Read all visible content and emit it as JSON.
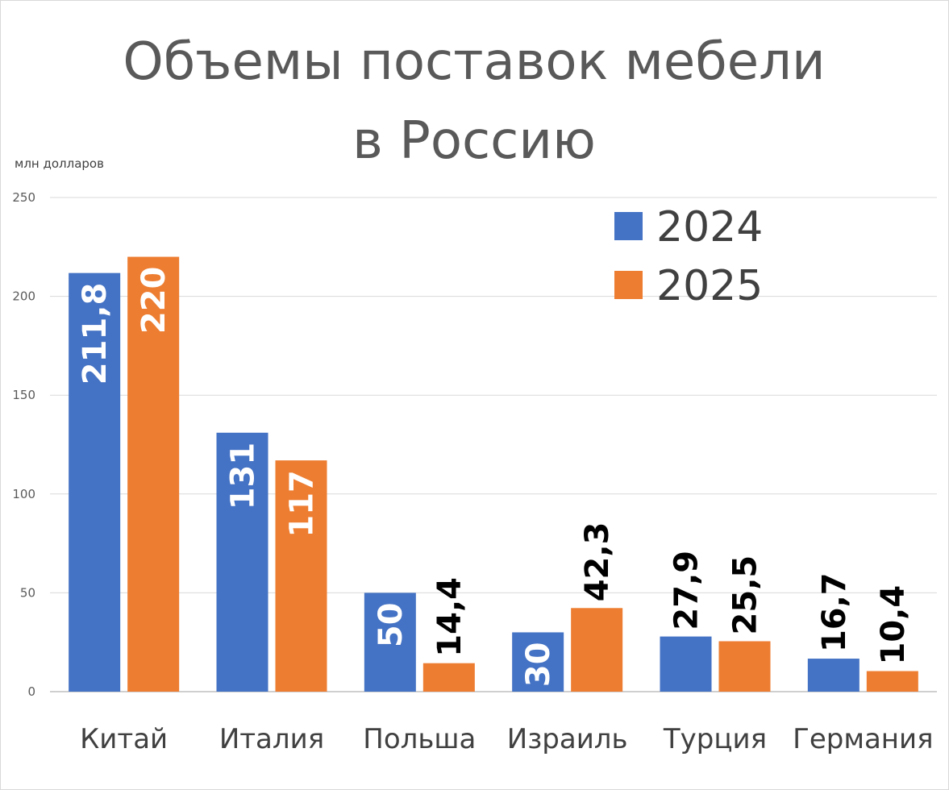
{
  "chart_data": {
    "type": "bar",
    "title_lines": [
      "Объемы поставок мебели",
      "в Россию"
    ],
    "ylabel": "млн долларов",
    "xlabel": "",
    "ylim": [
      0,
      250
    ],
    "yticks": [
      0,
      50,
      100,
      150,
      200,
      250
    ],
    "ytick_labels": [
      "0",
      "50",
      "100",
      "150",
      "200",
      "250"
    ],
    "grid": true,
    "legend_position": "top-right",
    "categories": [
      "Китай",
      "Италия",
      "Польша",
      "Израиль",
      "Турция",
      "Германия"
    ],
    "series": [
      {
        "name": "2024",
        "color": "#4472c4",
        "values": [
          211.8,
          131,
          50,
          30,
          27.9,
          16.7
        ],
        "labels": [
          "211,8",
          "131",
          "50",
          "30",
          "27,9",
          "16,7"
        ]
      },
      {
        "name": "2025",
        "color": "#ed7d31",
        "values": [
          220,
          117,
          14.4,
          42.3,
          25.5,
          10.4
        ],
        "labels": [
          "220",
          "117",
          "14,4",
          "42,3",
          "25,5",
          "10,4"
        ]
      }
    ]
  }
}
